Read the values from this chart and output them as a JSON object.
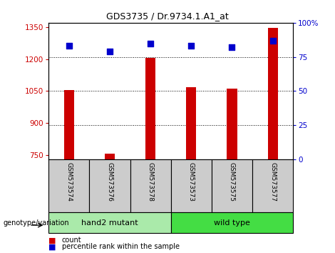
{
  "title": "GDS3735 / Dr.9734.1.A1_at",
  "samples": [
    "GSM573574",
    "GSM573576",
    "GSM573578",
    "GSM573573",
    "GSM573575",
    "GSM573577"
  ],
  "counts": [
    1055,
    758,
    1205,
    1068,
    1060,
    1347
  ],
  "percentiles": [
    83,
    79,
    85,
    83,
    82,
    87
  ],
  "ylim_left": [
    730,
    1370
  ],
  "ylim_right": [
    0,
    100
  ],
  "yticks_left": [
    750,
    900,
    1050,
    1200,
    1350
  ],
  "yticks_right": [
    0,
    25,
    50,
    75,
    100
  ],
  "groups": [
    {
      "label": "hand2 mutant",
      "indices": [
        0,
        1,
        2
      ],
      "color": "#AAEAAA"
    },
    {
      "label": "wild type",
      "indices": [
        3,
        4,
        5
      ],
      "color": "#44DD44"
    }
  ],
  "bar_color": "#CC0000",
  "marker_color": "#0000CC",
  "bar_width": 0.25,
  "bar_baseline": 730,
  "bg_color": "#CCCCCC",
  "plot_bg": "#FFFFFF",
  "left_label_color": "#CC0000",
  "right_label_color": "#0000CC",
  "percentile_marker_size": 40,
  "grid_dotted_color": "#000000"
}
